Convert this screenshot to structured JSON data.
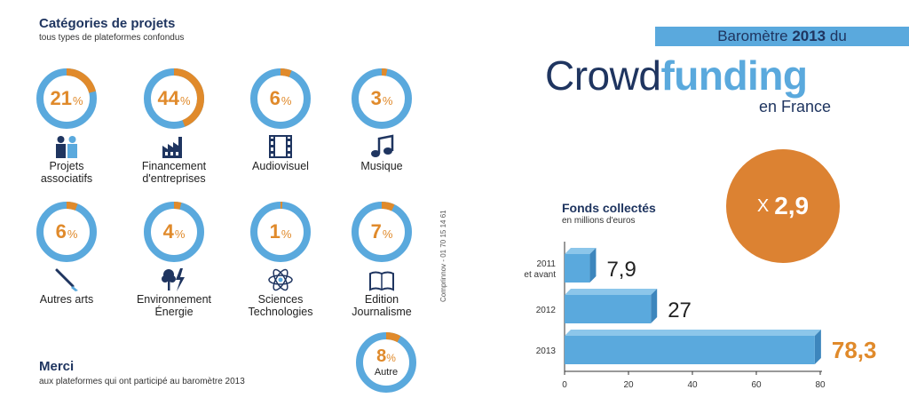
{
  "categories_section": {
    "title": "Catégories de projets",
    "subtitle": "tous types de plateformes confondus",
    "percent_sign": "%",
    "ring_color": "#5aa9dd",
    "accent_color": "#e08a2b",
    "items": [
      {
        "value": "21",
        "fraction": 0.21,
        "label": "Projets\nassociatifs",
        "icon": "people-icon"
      },
      {
        "value": "44",
        "fraction": 0.44,
        "label": "Financement\nd'entreprises",
        "icon": "factory-icon"
      },
      {
        "value": "6",
        "fraction": 0.06,
        "label": "Audiovisuel",
        "icon": "film-strip-icon"
      },
      {
        "value": "3",
        "fraction": 0.03,
        "label": "Musique",
        "icon": "music-note-icon"
      },
      {
        "value": "6",
        "fraction": 0.06,
        "label": "Autres arts",
        "icon": "paintbrush-icon"
      },
      {
        "value": "4",
        "fraction": 0.04,
        "label": "Environnement\nÉnergie",
        "icon": "tree-lightning-icon"
      },
      {
        "value": "1",
        "fraction": 0.01,
        "label": "Sciences\nTechnologies",
        "icon": "atom-icon"
      },
      {
        "value": "7",
        "fraction": 0.07,
        "label": "Edition\nJournalisme",
        "icon": "open-book-icon"
      }
    ],
    "other": {
      "value": "8",
      "fraction": 0.08,
      "label": "Autre"
    }
  },
  "merci": {
    "title": "Merci",
    "subtitle": "aux plateformes qui ont participé au baromètre 2013"
  },
  "credit": "Comprinnov - 01 70 15 14 61",
  "header": {
    "barometre_prefix": "Baromètre",
    "barometre_year": "2013",
    "barometre_suffix": "du",
    "crowd_light": "Crowd",
    "crowd_bold": "funding",
    "en_france": "en France"
  },
  "multiplier": {
    "prefix": "X",
    "value": "2,9"
  },
  "chart_data": {
    "type": "bar",
    "orientation": "horizontal",
    "title": "Fonds collectés",
    "subtitle": "en millions d'euros",
    "categories": [
      "2011\net avant",
      "2012",
      "2013"
    ],
    "values": [
      7.9,
      27,
      78.3
    ],
    "data_labels": [
      "7,9",
      "27",
      "78,3"
    ],
    "xlim": [
      0,
      80
    ],
    "xticks": [
      0,
      20,
      40,
      60,
      80
    ],
    "bar_color": "#5aa9dd",
    "highlight_label_color": "#e08a2b",
    "grid": false
  }
}
